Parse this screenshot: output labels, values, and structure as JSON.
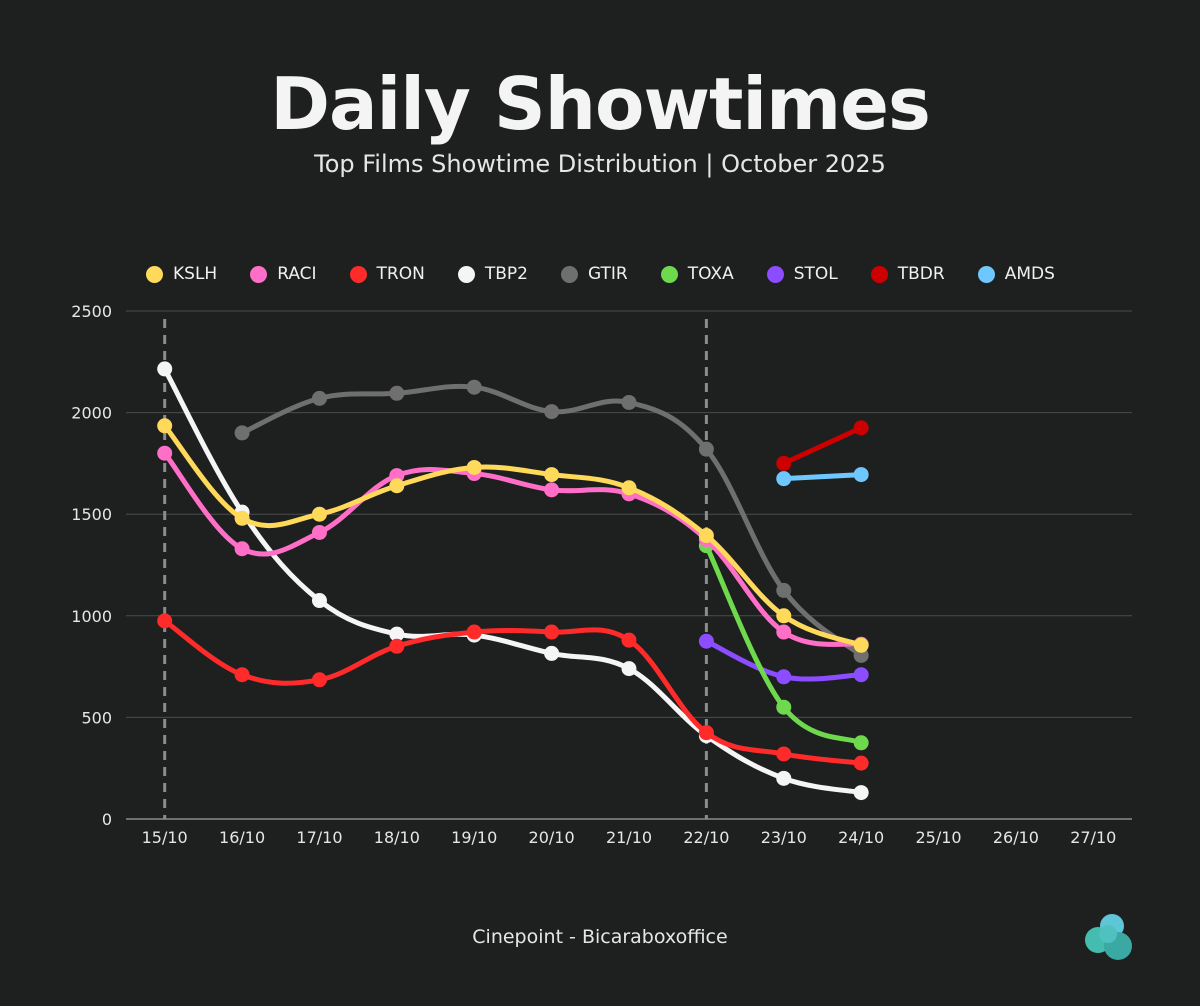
{
  "header": {
    "title": "Daily Showtimes",
    "subtitle": "Top Films Showtime Distribution | October 2025"
  },
  "footer": {
    "source": "Cinepoint - Bicaraboxoffice"
  },
  "logo": {
    "icon": "cloud-logo-icon",
    "color": "#3fb8b0"
  },
  "chart_data": {
    "type": "line",
    "title": "Daily Showtimes",
    "subtitle": "Top Films Showtime Distribution | October 2025",
    "xlabel": "",
    "ylabel": "",
    "categories": [
      "15/10",
      "16/10",
      "17/10",
      "18/10",
      "19/10",
      "20/10",
      "21/10",
      "22/10",
      "23/10",
      "24/10",
      "25/10",
      "26/10",
      "27/10"
    ],
    "ylim": [
      0,
      2500
    ],
    "yticks": [
      "0",
      "500",
      "1000",
      "1500",
      "2000",
      "2500"
    ],
    "grid": true,
    "legend_position": "top",
    "reference_lines": [
      "15/10",
      "22/10"
    ],
    "series": [
      {
        "name": "KSLH",
        "color": "#ffd95a",
        "values": [
          1935,
          1480,
          1500,
          1640,
          1730,
          1695,
          1630,
          1395,
          1000,
          855,
          null,
          null,
          null
        ]
      },
      {
        "name": "RACI",
        "color": "#ff6ec7",
        "values": [
          1800,
          1330,
          1410,
          1690,
          1700,
          1620,
          1600,
          1375,
          920,
          860,
          null,
          null,
          null
        ]
      },
      {
        "name": "TRON",
        "color": "#ff2a2a",
        "values": [
          975,
          710,
          685,
          850,
          920,
          920,
          880,
          425,
          320,
          275,
          null,
          null,
          null
        ]
      },
      {
        "name": "TBP2",
        "color": "#f5f5f5",
        "values": [
          2215,
          1510,
          1075,
          910,
          905,
          815,
          740,
          410,
          200,
          130,
          null,
          null,
          null
        ]
      },
      {
        "name": "GTIR",
        "color": "#6f6f6f",
        "values": [
          null,
          1900,
          2070,
          2095,
          2125,
          2005,
          2050,
          1820,
          1125,
          805,
          null,
          null,
          null
        ]
      },
      {
        "name": "TOXA",
        "color": "#6fd94e",
        "values": [
          null,
          null,
          null,
          null,
          null,
          null,
          null,
          1345,
          550,
          375,
          null,
          null,
          null
        ]
      },
      {
        "name": "STOL",
        "color": "#8b4dff",
        "values": [
          null,
          null,
          null,
          null,
          null,
          null,
          null,
          875,
          700,
          710,
          null,
          null,
          null
        ]
      },
      {
        "name": "TBDR",
        "color": "#cc0000",
        "values": [
          null,
          null,
          null,
          null,
          null,
          null,
          null,
          null,
          1750,
          1925,
          null,
          null,
          null
        ]
      },
      {
        "name": "AMDS",
        "color": "#6ec8ff",
        "values": [
          null,
          null,
          null,
          null,
          null,
          null,
          null,
          null,
          1675,
          1695,
          null,
          null,
          null
        ]
      }
    ]
  }
}
